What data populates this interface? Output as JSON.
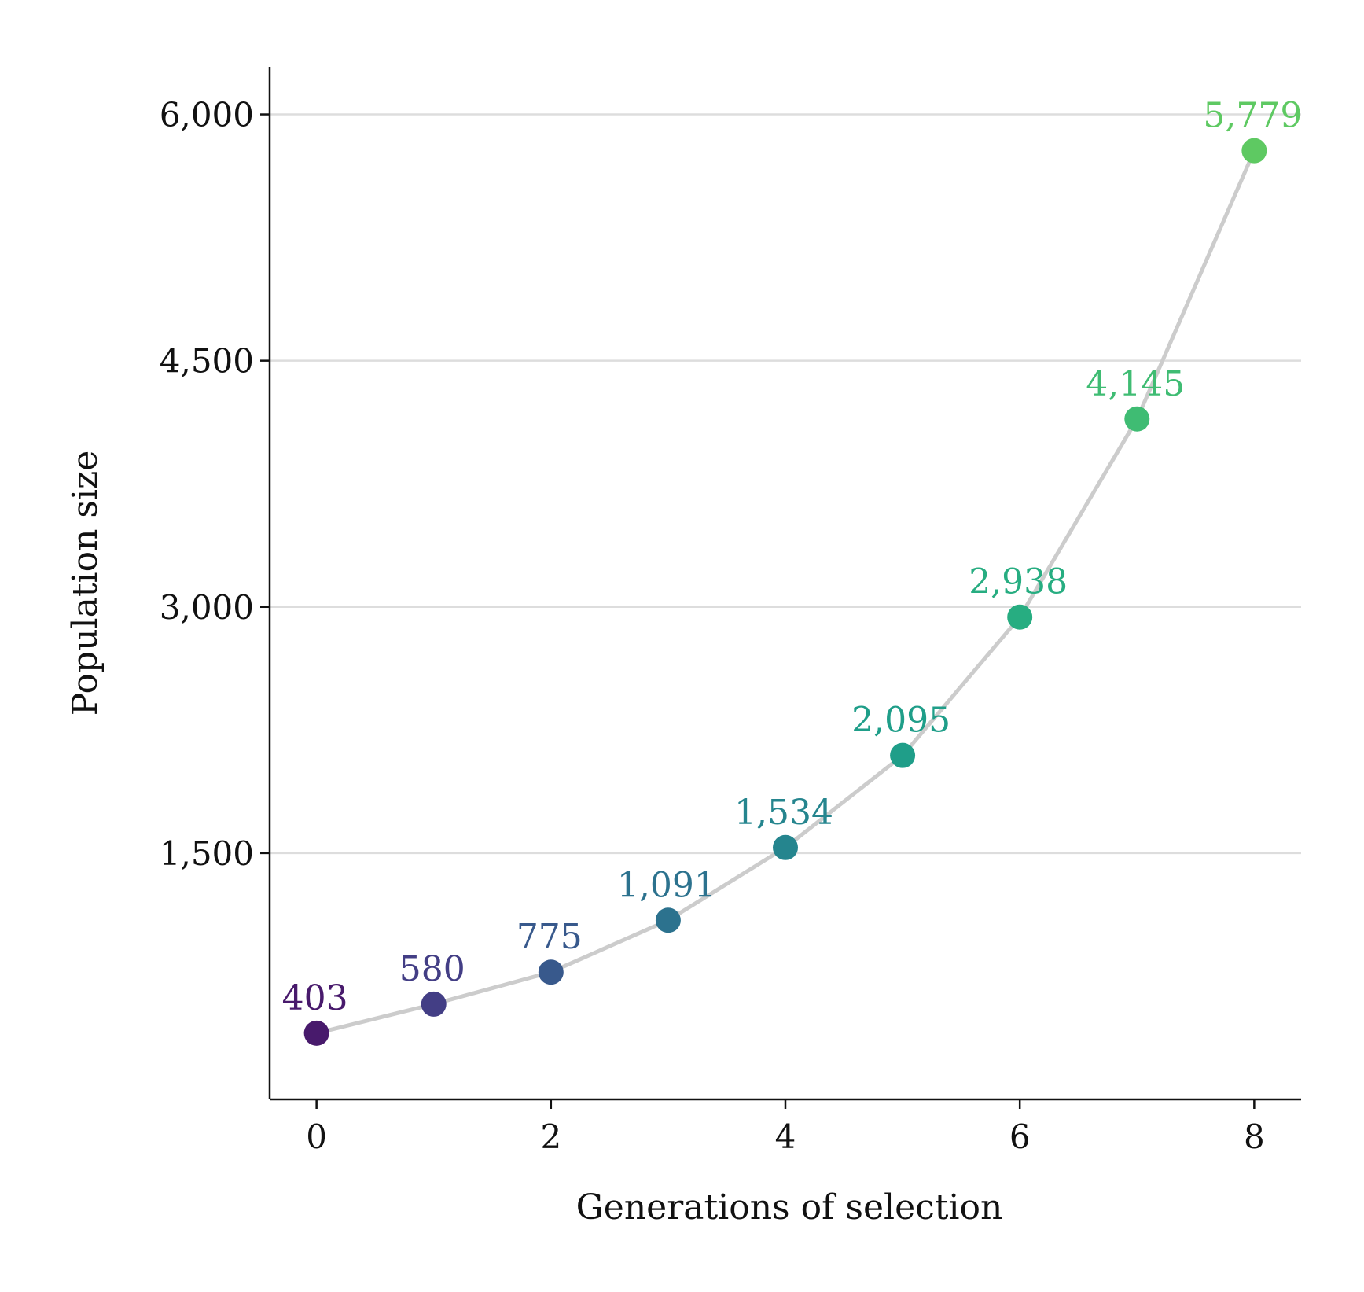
{
  "chart_data": {
    "type": "line",
    "title": "",
    "xlabel": "Generations of selection",
    "ylabel": "Population size",
    "x": [
      0,
      1,
      2,
      3,
      4,
      5,
      6,
      7,
      8
    ],
    "series": [
      {
        "values": [
          403,
          580,
          775,
          1091,
          1534,
          2095,
          2938,
          4145,
          5779
        ],
        "labels": [
          "403",
          "580",
          "775",
          "1,091",
          "1,534",
          "2,095",
          "2,938",
          "4,145",
          "5,779"
        ],
        "line_color": "#cccccc",
        "point_colors": [
          "#481a6c",
          "#433e85",
          "#38598c",
          "#2c728e",
          "#25858e",
          "#1f9e89",
          "#27ad81",
          "#3fbc73",
          "#5ec962"
        ]
      }
    ],
    "xlim": [
      -0.4,
      8.4
    ],
    "ylim": [
      0,
      6290
    ],
    "x_ticks": [
      0,
      2,
      4,
      6,
      8
    ],
    "x_tick_labels": [
      "0",
      "2",
      "4",
      "6",
      "8"
    ],
    "y_ticks": [
      1500,
      3000,
      4500,
      6000
    ],
    "y_tick_labels": [
      "1,500",
      "3,000",
      "4,500",
      "6,000"
    ],
    "grid": "horizontal",
    "grid_color": "#dddddd",
    "legend": "none"
  }
}
